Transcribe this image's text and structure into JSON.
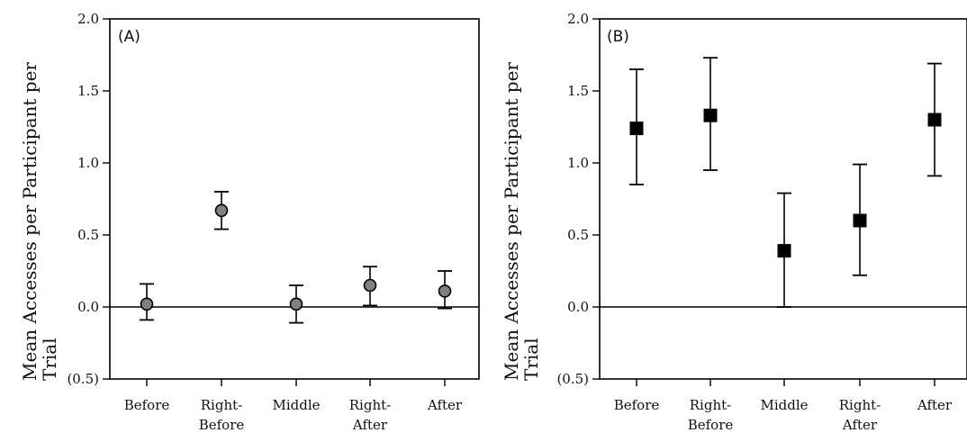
{
  "chart_data": [
    {
      "type": "scatter",
      "panel_label": "(A)",
      "ylabel": "Mean Accesses per Participant per Trial",
      "ylim": [
        -0.5,
        2.0
      ],
      "yticks": [
        -0.5,
        0.0,
        0.5,
        1.0,
        1.5,
        2.0
      ],
      "ytick_labels": [
        "(0.5)",
        "0.0",
        "0.5",
        "1.0",
        "1.5",
        "2.0"
      ],
      "categories": [
        "Before",
        "Right-Before",
        "Middle",
        "Right-After",
        "After"
      ],
      "category_lines": [
        [
          "Before"
        ],
        [
          "Right-",
          "Before"
        ],
        [
          "Middle"
        ],
        [
          "Right-",
          "After"
        ],
        [
          "After"
        ]
      ],
      "values": [
        0.02,
        0.67,
        0.02,
        0.15,
        0.11
      ],
      "err_low": [
        -0.09,
        0.54,
        -0.11,
        0.01,
        -0.01
      ],
      "err_high": [
        0.16,
        0.8,
        0.15,
        0.28,
        0.25
      ],
      "marker": "circle",
      "marker_color": "#808080",
      "zero_line": true,
      "grid": false
    },
    {
      "type": "scatter",
      "panel_label": "(B)",
      "ylabel": "Mean Accesses per Participant per Trial",
      "ylim": [
        -0.5,
        2.0
      ],
      "yticks": [
        -0.5,
        0.0,
        0.5,
        1.0,
        1.5,
        2.0
      ],
      "ytick_labels": [
        "(0.5)",
        "0.0",
        "0.5",
        "1.0",
        "1.5",
        "2.0"
      ],
      "categories": [
        "Before",
        "Right-Before",
        "Middle",
        "Right-After",
        "After"
      ],
      "category_lines": [
        [
          "Before"
        ],
        [
          "Right-",
          "Before"
        ],
        [
          "Middle"
        ],
        [
          "Right-",
          "After"
        ],
        [
          "After"
        ]
      ],
      "values": [
        1.24,
        1.33,
        0.39,
        0.6,
        1.3
      ],
      "err_low": [
        0.85,
        0.95,
        0.0,
        0.22,
        0.91
      ],
      "err_high": [
        1.65,
        1.73,
        0.79,
        0.99,
        1.69
      ],
      "marker": "square",
      "marker_color": "#000000",
      "zero_line": true,
      "grid": false
    }
  ]
}
